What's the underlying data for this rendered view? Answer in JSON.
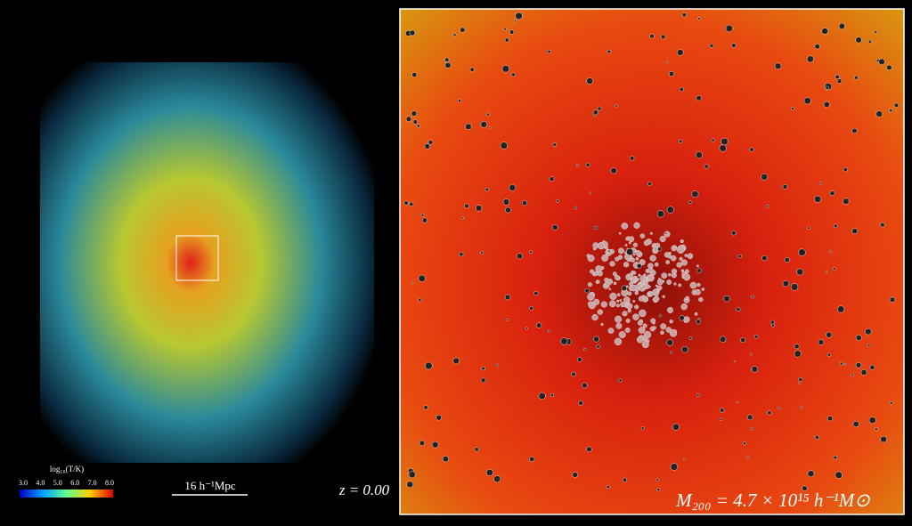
{
  "left_panel": {
    "colorbar": {
      "label": "log₁₀(T/K)",
      "ticks": [
        "3.0",
        "4.0",
        "5.0",
        "6.0",
        "7.0",
        "8.0"
      ]
    },
    "scale_bar": "16 h⁻¹Mpc"
  },
  "redshift": "z = 0.00",
  "right_panel": {
    "mass_label": "M₂₀₀ = 4.7 × 10¹⁵ h⁻¹M⊙"
  }
}
